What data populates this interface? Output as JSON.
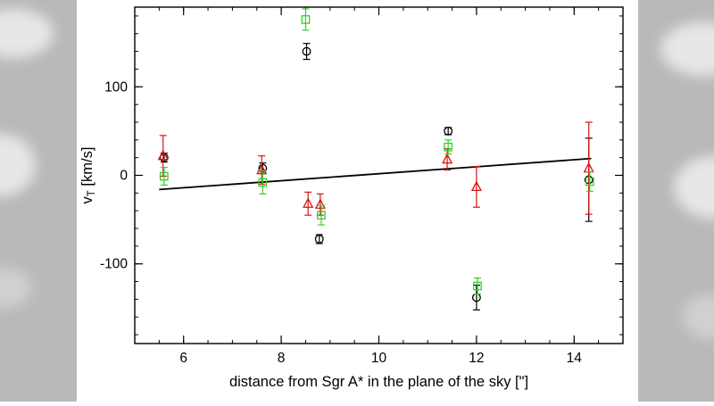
{
  "figure": {
    "background_color": "#ffffff",
    "side_panel_color": "#b9b9b9"
  },
  "chart_data": {
    "type": "scatter",
    "title": "",
    "xlabel": "distance from Sgr A* in the plane of the sky [\"]",
    "ylabel": "v_T [km/s]",
    "ylabel_parts": {
      "base": "v",
      "sub": "T",
      "rest": " [km/s]"
    },
    "xlim": [
      5,
      15
    ],
    "ylim": [
      -190,
      190
    ],
    "xticks": [
      6,
      8,
      10,
      12,
      14
    ],
    "yticks": [
      -100,
      0,
      100
    ],
    "x_minor_step": 0.5,
    "y_minor_step": 20,
    "grid": false,
    "legend": "none",
    "axis_color": "#000000",
    "fit_line": {
      "x1": 5.5,
      "y1": -16,
      "x2": 14.35,
      "y2": 19,
      "color": "#000000",
      "width": 1.8
    },
    "series": [
      {
        "name": "black-circles",
        "marker": "circle",
        "color": "#000000",
        "points": [
          {
            "x": 5.6,
            "y": 20,
            "err": 5
          },
          {
            "x": 7.62,
            "y": 8,
            "err": 6
          },
          {
            "x": 8.52,
            "y": 140,
            "err": 9
          },
          {
            "x": 8.78,
            "y": -72,
            "err": 5
          },
          {
            "x": 11.42,
            "y": 50,
            "err": 4
          },
          {
            "x": 12.0,
            "y": -138,
            "err": 14
          },
          {
            "x": 14.3,
            "y": -5,
            "err": 47
          }
        ]
      },
      {
        "name": "red-triangles",
        "marker": "triangle",
        "color": "#dd1111",
        "points": [
          {
            "x": 5.58,
            "y": 22,
            "err": 23
          },
          {
            "x": 7.6,
            "y": 6,
            "err": 16
          },
          {
            "x": 8.55,
            "y": -32,
            "err": 13
          },
          {
            "x": 8.8,
            "y": -33,
            "err": 12
          },
          {
            "x": 11.4,
            "y": 18,
            "err": 12
          },
          {
            "x": 12.0,
            "y": -13,
            "err": 23
          },
          {
            "x": 14.3,
            "y": 8,
            "err": 52
          }
        ]
      },
      {
        "name": "green-squares",
        "marker": "square",
        "color": "#2ed32e",
        "points": [
          {
            "x": 5.6,
            "y": -1,
            "err": 10
          },
          {
            "x": 7.62,
            "y": -8,
            "err": 13
          },
          {
            "x": 8.5,
            "y": 176,
            "err": 12
          },
          {
            "x": 8.82,
            "y": -45,
            "err": 11
          },
          {
            "x": 11.42,
            "y": 32,
            "err": 8
          },
          {
            "x": 12.02,
            "y": -125,
            "err": 9
          },
          {
            "x": 14.32,
            "y": -7,
            "err": 11
          }
        ]
      }
    ]
  }
}
